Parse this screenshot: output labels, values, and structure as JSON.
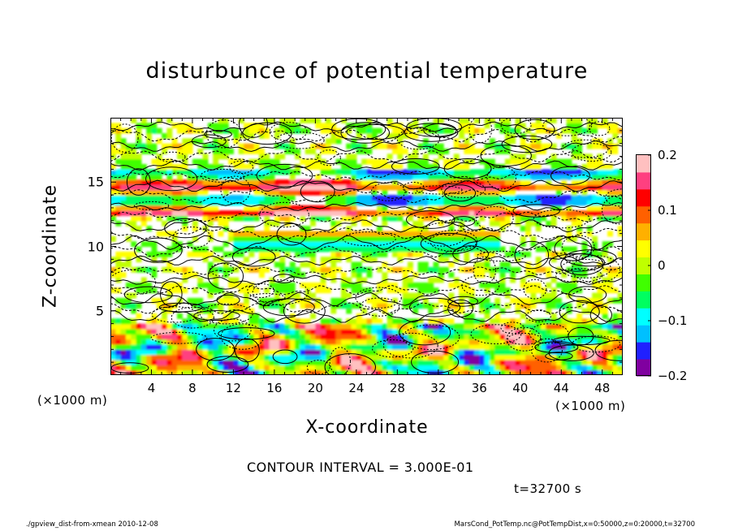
{
  "title": "disturbunce of potential temperature",
  "chart_data": {
    "type": "heatmap",
    "title": "disturbunce of potential temperature",
    "xlabel": "X-coordinate",
    "ylabel": "Z-coordinate",
    "x_unit": "(×1000 m)",
    "xlim": [
      0,
      50
    ],
    "ylim": [
      0,
      20
    ],
    "x_ticks": [
      4,
      8,
      12,
      16,
      20,
      24,
      28,
      32,
      36,
      40,
      44,
      48
    ],
    "y_ticks": [
      5,
      10,
      15
    ],
    "colorbar": {
      "range": [
        -0.2,
        0.2
      ],
      "tick_labels": [
        "0.2",
        "0.1",
        "0",
        "−0.1",
        "−0.2"
      ],
      "tick_values": [
        0.2,
        0.1,
        0,
        -0.1,
        -0.2
      ]
    },
    "contour_interval": "CONTOUR INTERVAL = 3.000E-01",
    "time_label": "t=32700 s"
  },
  "colors": {
    "colormap": [
      "#8000a0",
      "#2020ff",
      "#00c0ff",
      "#00ffff",
      "#00ff60",
      "#40ff00",
      "#c0ff00",
      "#ffff00",
      "#ffb000",
      "#ff6000",
      "#ff0000",
      "#ff4080",
      "#ffc0c0"
    ],
    "contour": "#000000"
  },
  "footer": {
    "left": "./gpview_dist-from-xmean   2010-12-08",
    "right": "MarsCond_PotTemp.nc@PotTempDist,x=0:50000,z=0:20000,t=32700"
  }
}
